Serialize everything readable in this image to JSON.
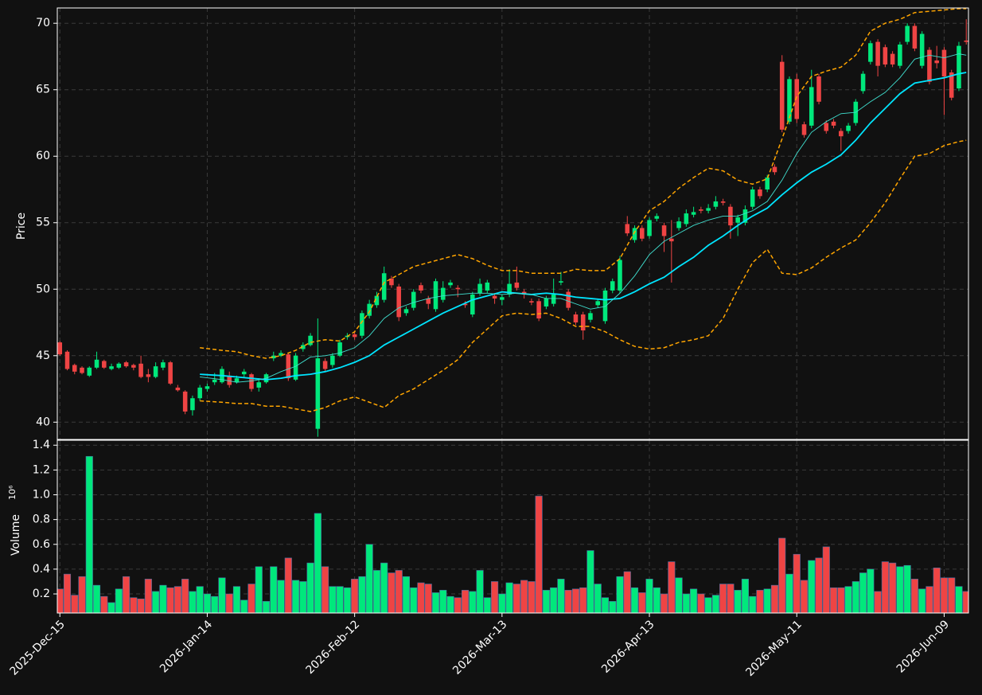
{
  "chart_data": [
    {
      "type": "candlestick",
      "ylabel": "Price",
      "categories": [
        "2025-Dec-15",
        null,
        null,
        null,
        null,
        null,
        null,
        null,
        null,
        null,
        null,
        null,
        null,
        null,
        null,
        null,
        null,
        null,
        null,
        null,
        "2026-Jan-14",
        null,
        null,
        null,
        null,
        null,
        null,
        null,
        null,
        null,
        null,
        null,
        null,
        null,
        null,
        null,
        null,
        null,
        null,
        null,
        "2026-Feb-12",
        null,
        null,
        null,
        null,
        null,
        null,
        null,
        null,
        null,
        null,
        null,
        null,
        null,
        null,
        null,
        null,
        null,
        null,
        null,
        "2026-Mar-13",
        null,
        null,
        null,
        null,
        null,
        null,
        null,
        null,
        null,
        null,
        null,
        null,
        null,
        null,
        null,
        null,
        null,
        null,
        null,
        "2026-Apr-13",
        null,
        null,
        null,
        null,
        null,
        null,
        null,
        null,
        null,
        null,
        null,
        null,
        null,
        null,
        null,
        null,
        null,
        null,
        null,
        "2026-May-11",
        null,
        null,
        null,
        null,
        null,
        null,
        null,
        null,
        null,
        null,
        null,
        null,
        null,
        null,
        null,
        null,
        null,
        null,
        null,
        "2026-Jun-09",
        null,
        null,
        null
      ],
      "open": [
        46.0,
        45.3,
        44.3,
        44.1,
        43.5,
        44.1,
        44.6,
        44.0,
        44.1,
        44.5,
        44.3,
        44.4,
        43.6,
        43.4,
        44.1,
        44.5,
        42.6,
        42.3,
        40.9,
        41.8,
        42.5,
        43.0,
        43.0,
        43.5,
        43.0,
        43.6,
        43.6,
        42.6,
        43.0,
        44.8,
        45.0,
        45.1,
        43.2,
        45.5,
        45.8,
        39.5,
        44.6,
        44.3,
        45.0,
        46.4,
        46.6,
        46.5,
        48.0,
        48.8,
        49.2,
        50.8,
        50.2,
        48.2,
        48.6,
        50.3,
        49.3,
        48.5,
        49.2,
        50.3,
        50.1,
        48.9,
        48.1,
        49.7,
        49.9,
        49.5,
        49.2,
        49.6,
        50.5,
        49.8,
        49.1,
        49.1,
        48.7,
        48.9,
        50.5,
        49.8,
        48.1,
        48.1,
        47.7,
        48.8,
        47.6,
        49.9,
        49.9,
        54.9,
        53.7,
        54.6,
        54.0,
        55.3,
        54.8,
        53.8,
        54.6,
        54.9,
        55.6,
        56.0,
        55.9,
        56.2,
        56.6,
        56.2,
        55.0,
        55.0,
        56.2,
        57.5,
        57.5,
        59.2,
        67.1,
        62.6,
        65.8,
        62.4,
        62.3,
        66.0,
        62.5,
        62.6,
        61.9,
        61.9,
        62.5,
        64.9,
        67.1,
        68.6,
        68.2,
        67.7,
        66.8,
        68.6,
        69.8,
        66.8,
        68.0,
        67.2,
        68.0,
        66.3,
        65.1,
        68.7
      ],
      "high": [
        46.1,
        45.4,
        44.4,
        44.2,
        44.2,
        45.3,
        44.7,
        44.4,
        44.5,
        44.6,
        44.4,
        45.0,
        44.0,
        44.5,
        44.7,
        44.6,
        42.8,
        42.4,
        42.0,
        42.8,
        42.9,
        43.7,
        44.2,
        43.8,
        43.5,
        44.0,
        43.7,
        43.3,
        43.7,
        45.3,
        45.4,
        45.2,
        45.2,
        46.0,
        46.7,
        47.8,
        44.8,
        45.2,
        46.2,
        46.7,
        46.8,
        48.4,
        49.2,
        49.8,
        51.7,
        51.0,
        50.4,
        48.7,
        50.0,
        50.5,
        49.5,
        50.8,
        50.6,
        50.7,
        50.3,
        49.1,
        49.8,
        50.8,
        50.7,
        49.7,
        49.6,
        51.5,
        51.7,
        50.0,
        49.3,
        49.3,
        49.5,
        50.8,
        51.3,
        50.0,
        48.3,
        48.3,
        48.4,
        49.3,
        50.1,
        50.8,
        52.5,
        55.5,
        54.8,
        54.8,
        55.4,
        55.7,
        55.0,
        55.2,
        55.4,
        56.0,
        56.2,
        56.2,
        56.4,
        57.0,
        56.8,
        56.4,
        55.6,
        56.3,
        57.7,
        57.7,
        58.6,
        59.4,
        67.6,
        66.0,
        66.2,
        62.6,
        66.5,
        66.2,
        62.7,
        62.8,
        62.1,
        62.5,
        64.3,
        66.4,
        68.7,
        68.8,
        68.4,
        67.9,
        68.6,
        70.0,
        70.0,
        69.4,
        68.2,
        68.3,
        68.2,
        66.5,
        68.6,
        70.3
      ],
      "low": [
        45.0,
        43.9,
        43.6,
        43.6,
        43.4,
        44.0,
        44.0,
        43.9,
        44.0,
        44.1,
        43.9,
        43.3,
        43.0,
        43.3,
        43.9,
        42.8,
        42.3,
        40.6,
        40.5,
        41.6,
        42.3,
        42.8,
        42.9,
        42.6,
        42.9,
        43.4,
        42.3,
        42.3,
        42.9,
        44.6,
        44.9,
        43.1,
        43.1,
        45.3,
        45.7,
        38.9,
        43.8,
        44.1,
        44.9,
        46.2,
        46.2,
        46.3,
        47.8,
        48.6,
        49.0,
        50.1,
        47.6,
        48.0,
        48.4,
        49.7,
        48.5,
        48.3,
        49.0,
        50.1,
        49.4,
        48.6,
        47.9,
        49.5,
        49.7,
        48.9,
        48.8,
        49.4,
        49.9,
        49.3,
        48.8,
        47.6,
        48.5,
        48.7,
        50.3,
        48.4,
        47.3,
        46.2,
        47.5,
        48.6,
        47.4,
        49.7,
        49.7,
        54.0,
        53.5,
        53.6,
        53.8,
        55.1,
        52.8,
        50.5,
        54.4,
        54.7,
        55.4,
        55.7,
        55.7,
        56.0,
        56.3,
        53.8,
        54.0,
        54.8,
        56.0,
        56.8,
        57.3,
        58.6,
        61.8,
        62.4,
        62.5,
        61.4,
        62.1,
        63.9,
        61.7,
        62.1,
        60.4,
        61.7,
        62.3,
        64.7,
        66.9,
        66.0,
        66.7,
        66.7,
        66.6,
        68.4,
        67.9,
        66.6,
        65.4,
        66.6,
        63.1,
        64.2,
        64.9,
        68.4
      ],
      "close": [
        45.1,
        44.0,
        43.8,
        43.7,
        44.1,
        44.7,
        44.1,
        44.2,
        44.4,
        44.2,
        44.1,
        43.4,
        43.4,
        44.2,
        44.5,
        42.9,
        42.4,
        40.8,
        41.8,
        42.6,
        42.7,
        43.2,
        44.0,
        42.8,
        43.3,
        43.8,
        42.5,
        43.0,
        43.6,
        45.0,
        45.2,
        43.3,
        45.0,
        45.8,
        46.5,
        44.8,
        44.0,
        45.0,
        46.0,
        46.5,
        46.4,
        48.2,
        48.9,
        49.5,
        51.2,
        50.3,
        47.9,
        48.5,
        49.8,
        49.9,
        48.9,
        50.6,
        50.1,
        50.5,
        50.0,
        48.8,
        49.6,
        50.4,
        50.5,
        49.3,
        49.4,
        50.4,
        50.1,
        49.6,
        49.0,
        47.8,
        49.3,
        49.6,
        50.6,
        48.6,
        47.5,
        46.9,
        48.2,
        49.1,
        49.9,
        50.6,
        52.2,
        54.2,
        54.6,
        53.8,
        55.2,
        55.5,
        54.0,
        53.6,
        55.1,
        55.7,
        55.8,
        55.9,
        56.1,
        56.6,
        56.5,
        54.8,
        55.4,
        56.0,
        57.5,
        57.0,
        58.4,
        58.8,
        62.0,
        65.8,
        62.8,
        61.6,
        65.2,
        64.1,
        61.9,
        62.3,
        61.5,
        62.3,
        64.1,
        66.2,
        68.5,
        66.8,
        66.9,
        66.9,
        68.4,
        69.8,
        68.1,
        69.2,
        65.6,
        67.0,
        66.0,
        64.4,
        68.3,
        68.6
      ],
      "up_color": "#00e87c",
      "down_color": "#ef4444",
      "lines": [
        {
          "color": "#ffa500",
          "style": "dashed",
          "width": 1.5,
          "x": [
            19,
            22,
            24,
            26,
            28,
            30,
            32,
            34,
            36,
            38,
            40,
            42,
            44,
            46,
            48,
            50,
            52,
            54,
            56,
            58,
            60,
            62,
            64,
            66,
            68,
            70,
            72,
            74,
            76,
            78,
            80,
            82,
            84,
            86,
            88,
            90,
            92,
            94,
            96,
            98,
            100,
            102,
            104,
            106,
            108,
            110,
            112,
            114,
            116,
            118,
            120,
            122,
            123
          ],
          "values": [
            45.6,
            45.4,
            45.3,
            45.0,
            44.8,
            45.0,
            45.4,
            46.0,
            46.2,
            46.1,
            46.8,
            48.3,
            50.5,
            51.1,
            51.7,
            52.0,
            52.3,
            52.6,
            52.3,
            51.8,
            51.4,
            51.4,
            51.2,
            51.2,
            51.2,
            51.5,
            51.4,
            51.4,
            52.3,
            54.3,
            55.9,
            56.6,
            57.6,
            58.4,
            59.1,
            58.9,
            58.2,
            57.9,
            58.3,
            61.3,
            64.5,
            66.0,
            66.4,
            66.7,
            67.6,
            69.4,
            70.0,
            70.3,
            70.8,
            70.9,
            71.0,
            71.1,
            71.1
          ]
        },
        {
          "color": "#ffa500",
          "style": "dashed",
          "width": 1.5,
          "x": [
            19,
            22,
            24,
            26,
            28,
            30,
            32,
            34,
            36,
            38,
            40,
            42,
            44,
            46,
            48,
            50,
            52,
            54,
            56,
            58,
            60,
            62,
            64,
            66,
            68,
            70,
            72,
            74,
            76,
            78,
            80,
            82,
            84,
            86,
            88,
            90,
            92,
            94,
            96,
            98,
            100,
            102,
            104,
            106,
            108,
            110,
            112,
            114,
            116,
            118,
            120,
            122,
            123
          ],
          "values": [
            41.6,
            41.5,
            41.4,
            41.4,
            41.2,
            41.2,
            41.0,
            40.8,
            41.1,
            41.6,
            41.9,
            41.5,
            41.1,
            42.0,
            42.5,
            43.2,
            43.9,
            44.7,
            46.0,
            47.0,
            48.0,
            48.2,
            48.1,
            48.2,
            47.8,
            47.2,
            47.2,
            46.8,
            46.2,
            45.7,
            45.5,
            45.6,
            46.0,
            46.2,
            46.5,
            47.8,
            50.0,
            52.0,
            53.0,
            51.2,
            51.1,
            51.6,
            52.4,
            53.1,
            53.7,
            55.0,
            56.5,
            58.3,
            60.0,
            60.2,
            60.8,
            61.1,
            61.2
          ]
        },
        {
          "color": "#00e5ff",
          "style": "solid",
          "width": 1.8,
          "x": [
            19,
            22,
            24,
            26,
            28,
            30,
            32,
            34,
            36,
            38,
            40,
            42,
            44,
            46,
            48,
            50,
            52,
            54,
            56,
            58,
            60,
            62,
            64,
            66,
            68,
            70,
            72,
            74,
            76,
            78,
            80,
            82,
            84,
            86,
            88,
            90,
            92,
            94,
            96,
            98,
            100,
            102,
            104,
            106,
            108,
            110,
            112,
            114,
            116,
            118,
            120,
            122,
            123
          ],
          "values": [
            43.6,
            43.5,
            43.4,
            43.3,
            43.2,
            43.3,
            43.5,
            43.6,
            43.8,
            44.1,
            44.5,
            45.0,
            45.8,
            46.4,
            47.0,
            47.6,
            48.2,
            48.7,
            49.2,
            49.5,
            49.8,
            49.7,
            49.6,
            49.7,
            49.6,
            49.4,
            49.3,
            49.2,
            49.3,
            49.8,
            50.4,
            50.9,
            51.7,
            52.4,
            53.3,
            54.0,
            54.8,
            55.5,
            56.1,
            57.1,
            58.0,
            58.8,
            59.4,
            60.1,
            61.2,
            62.5,
            63.6,
            64.7,
            65.5,
            65.7,
            65.9,
            66.2,
            66.3
          ]
        },
        {
          "color": "#40e0d0",
          "style": "solid",
          "width": 0.9,
          "x": [
            19,
            22,
            24,
            26,
            28,
            30,
            32,
            34,
            36,
            38,
            40,
            42,
            44,
            46,
            48,
            50,
            52,
            54,
            56,
            58,
            60,
            62,
            64,
            66,
            68,
            70,
            72,
            74,
            76,
            78,
            80,
            82,
            84,
            86,
            88,
            90,
            92,
            94,
            96,
            98,
            100,
            102,
            104,
            106,
            108,
            110,
            112,
            114,
            116,
            118,
            120,
            122,
            123
          ],
          "values": [
            43.4,
            43.2,
            43.0,
            43.1,
            43.3,
            43.8,
            44.2,
            44.9,
            45.0,
            45.2,
            45.6,
            46.5,
            47.8,
            48.6,
            49.0,
            49.3,
            49.5,
            49.6,
            49.7,
            49.7,
            49.6,
            49.7,
            49.6,
            49.3,
            49.3,
            48.9,
            48.5,
            48.7,
            49.7,
            51.0,
            52.6,
            53.6,
            54.2,
            54.8,
            55.2,
            55.5,
            55.5,
            55.9,
            56.6,
            58.2,
            60.2,
            61.8,
            62.6,
            63.2,
            63.3,
            64.1,
            64.8,
            65.9,
            67.3,
            67.6,
            67.4,
            67.7,
            67.6
          ]
        }
      ],
      "xlim": [
        -0.35,
        123.3
      ],
      "ylim": [
        38.7,
        71.15
      ],
      "yticks": [
        40,
        45,
        50,
        55,
        60,
        65,
        70
      ],
      "grid": true
    },
    {
      "type": "bar",
      "ylabel": "Volume",
      "scale_label": "10⁶",
      "values": [
        0.24,
        0.36,
        0.19,
        0.34,
        1.31,
        0.27,
        0.18,
        0.13,
        0.24,
        0.34,
        0.17,
        0.16,
        0.32,
        0.22,
        0.27,
        0.25,
        0.26,
        0.32,
        0.22,
        0.26,
        0.2,
        0.18,
        0.33,
        0.2,
        0.26,
        0.15,
        0.28,
        0.42,
        0.14,
        0.42,
        0.31,
        0.49,
        0.31,
        0.3,
        0.45,
        0.85,
        0.42,
        0.26,
        0.26,
        0.25,
        0.32,
        0.34,
        0.6,
        0.39,
        0.45,
        0.37,
        0.39,
        0.34,
        0.25,
        0.29,
        0.28,
        0.21,
        0.23,
        0.18,
        0.17,
        0.23,
        0.22,
        0.39,
        0.17,
        0.3,
        0.2,
        0.29,
        0.28,
        0.31,
        0.3,
        0.99,
        0.23,
        0.25,
        0.32,
        0.23,
        0.24,
        0.25,
        0.55,
        0.28,
        0.17,
        0.14,
        0.34,
        0.38,
        0.25,
        0.21,
        0.32,
        0.25,
        0.2,
        0.46,
        0.33,
        0.2,
        0.24,
        0.2,
        0.17,
        0.19,
        0.28,
        0.28,
        0.23,
        0.32,
        0.18,
        0.23,
        0.24,
        0.27,
        0.65,
        0.36,
        0.52,
        0.31,
        0.47,
        0.49,
        0.58,
        0.25,
        0.25,
        0.26,
        0.3,
        0.37,
        0.4,
        0.22,
        0.46,
        0.45,
        0.42,
        0.43,
        0.32,
        0.24,
        0.26,
        0.41,
        0.33,
        0.33,
        0.26,
        0.22
      ],
      "ylim": [
        0.046,
        1.44
      ],
      "yticks": [
        0.2,
        0.4,
        0.6,
        0.8,
        {
          "value": 1.0,
          "label": "1.0"
        },
        1.2,
        1.4
      ],
      "grid": true
    }
  ]
}
